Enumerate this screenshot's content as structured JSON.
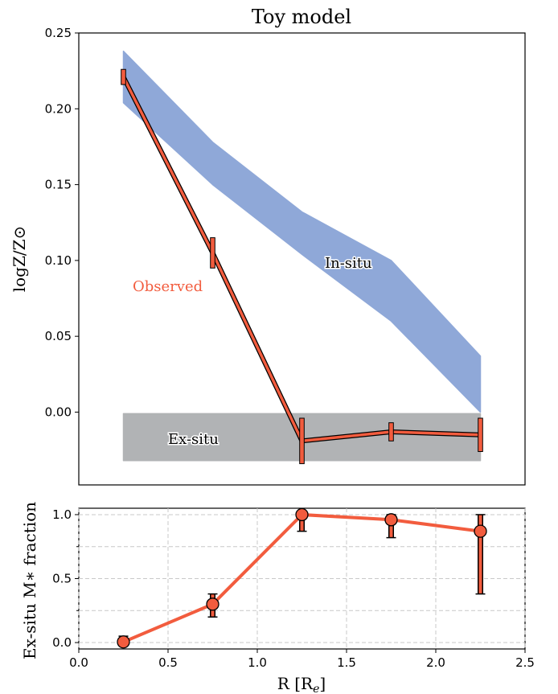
{
  "chart_data": [
    {
      "type": "line",
      "title": "Toy model",
      "xlabel": "",
      "ylabel": "logZ/Z⊙",
      "xlim": [
        0.0,
        2.5
      ],
      "ylim": [
        -0.048,
        0.25
      ],
      "yticks": [
        "0.25",
        "0.20",
        "0.15",
        "0.10",
        "0.05",
        "0.00"
      ],
      "ytick_values": [
        0.25,
        0.2,
        0.15,
        0.1,
        0.05,
        0.0
      ],
      "bands": [
        {
          "name": "In-situ",
          "color": "#8fa8d8",
          "x": [
            0.25,
            0.75,
            1.25,
            1.75,
            2.25
          ],
          "upper": [
            0.238,
            0.178,
            0.132,
            0.1,
            0.037
          ],
          "lower": [
            0.204,
            0.15,
            0.104,
            0.06,
            0.0
          ]
        },
        {
          "name": "Ex-situ",
          "color": "#b1b3b5",
          "x": [
            0.25,
            2.25
          ],
          "upper": [
            -0.001,
            -0.001
          ],
          "lower": [
            -0.032,
            -0.032
          ]
        }
      ],
      "series": [
        {
          "name": "Observed",
          "color": "#f25c3e",
          "x": [
            0.25,
            0.75,
            1.25,
            1.75,
            2.25
          ],
          "y": [
            0.221,
            0.105,
            -0.019,
            -0.013,
            -0.015
          ],
          "yerr": [
            0.005,
            0.01,
            0.015,
            0.006,
            0.011
          ]
        }
      ],
      "annotations": [
        "Observed",
        "In-situ",
        "Ex-situ"
      ]
    },
    {
      "type": "line",
      "title": "",
      "xlabel": "R [R_e]",
      "ylabel": "Ex-situ M∗ fraction",
      "xlim": [
        0.0,
        2.5
      ],
      "ylim": [
        -0.05,
        1.05
      ],
      "grid": true,
      "xticks": [
        "0.0",
        "0.5",
        "1.0",
        "1.5",
        "2.0",
        "2.5"
      ],
      "xtick_values": [
        0.0,
        0.5,
        1.0,
        1.5,
        2.0,
        2.5
      ],
      "yticks": [
        "0.0",
        "0.5",
        "1.0"
      ],
      "ytick_values": [
        0.0,
        0.5,
        1.0
      ],
      "series": [
        {
          "name": "",
          "color": "#f25c3e",
          "x": [
            0.25,
            0.75,
            1.25,
            1.75,
            2.25
          ],
          "y": [
            0.005,
            0.3,
            1.0,
            0.96,
            0.87
          ],
          "err_low": [
            0.0,
            0.2,
            0.87,
            0.82,
            0.38
          ],
          "err_high": [
            0.05,
            0.38,
            1.0,
            1.0,
            1.0
          ]
        }
      ]
    }
  ]
}
